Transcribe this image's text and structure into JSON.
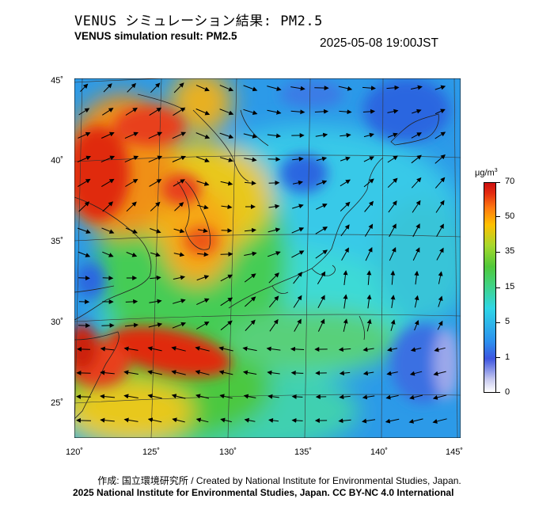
{
  "header": {
    "title_jp": "VENUS シミュレーション結果: PM2.5",
    "title_en": "VENUS simulation result: PM2.5",
    "timestamp": "2025-05-08 19:00JST"
  },
  "map": {
    "lat_labels": [
      "45˚",
      "40˚",
      "35˚",
      "30˚",
      "25˚"
    ],
    "lon_labels": [
      "120˚",
      "125˚",
      "130˚",
      "135˚",
      "140˚",
      "145˚"
    ],
    "region_colors": {
      "ocean_blue": "#2c8fee",
      "cyan": "#2fd6e6",
      "green": "#42d27a",
      "yellow": "#ffc000",
      "orange": "#ff7a10",
      "red": "#e42c10"
    }
  },
  "legend": {
    "unit": "μg/m",
    "unit_sup": "3",
    "ticks": [
      "70",
      "50",
      "35",
      "15",
      "5",
      "1",
      "0"
    ]
  },
  "footer": {
    "credit": "作成: 国立環境研究所 / Created by National Institute for Environmental Studies, Japan.",
    "copyright": "2025 National Institute for Environmental Studies, Japan. CC BY-NC 4.0 International"
  }
}
